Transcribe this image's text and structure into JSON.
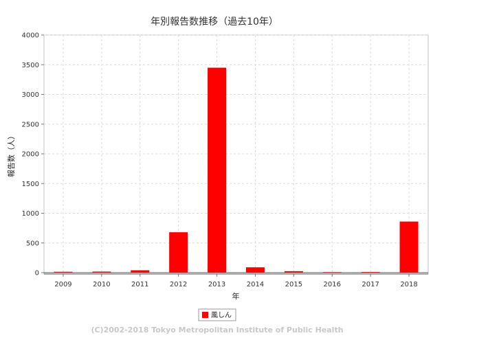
{
  "chart_data": {
    "type": "bar",
    "title": "年別報告数推移（過去10年）",
    "xlabel": "年",
    "ylabel": "報告数（人）",
    "categories": [
      "2009",
      "2010",
      "2011",
      "2012",
      "2013",
      "2014",
      "2015",
      "2016",
      "2017",
      "2018"
    ],
    "series": [
      {
        "name": "風しん",
        "color": "#ff0000",
        "values": [
          15,
          18,
          40,
          680,
          3450,
          90,
          25,
          10,
          12,
          860
        ]
      }
    ],
    "ylim": [
      0,
      4000
    ],
    "yticks": [
      0,
      500,
      1000,
      1500,
      2000,
      2500,
      3000,
      3500,
      4000
    ],
    "grid": true,
    "legend_position": "bottom-center"
  },
  "footer": {
    "copyright": "(C)2002-2018 Tokyo Metropolitan Institute of Public Health"
  }
}
